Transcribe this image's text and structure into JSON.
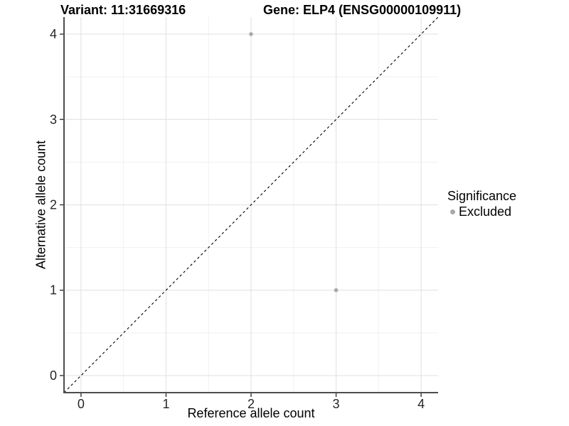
{
  "chart_data": {
    "type": "scatter",
    "titles": {
      "left": "Variant: 11:31669316",
      "right": "Gene: ELP4 (ENSG00000109911)"
    },
    "xlabel": "Reference allele count",
    "ylabel": "Alternative allele count",
    "xlim": [
      -0.2,
      4.2
    ],
    "ylim": [
      -0.2,
      4.2
    ],
    "xticks": [
      0,
      1,
      2,
      3,
      4
    ],
    "yticks": [
      0,
      1,
      2,
      3,
      4
    ],
    "minor_ticks": [
      0.5,
      1.5,
      2.5,
      3.5
    ],
    "grid": "major+minor",
    "identity_line": {
      "slope": 1,
      "intercept": 0,
      "style": "dashed",
      "color": "#000000"
    },
    "series": [
      {
        "name": "Excluded",
        "color": "#a9a9a9",
        "points": [
          {
            "x": 2,
            "y": 4
          },
          {
            "x": 3,
            "y": 1
          }
        ]
      }
    ],
    "legend": {
      "title": "Significance",
      "position": "right",
      "entries": [
        {
          "label": "Excluded",
          "color": "#a9a9a9",
          "marker": "circle"
        }
      ]
    },
    "colors": {
      "background": "#ffffff",
      "grid_major": "#e4e4e4",
      "grid_minor": "#f1f1f1",
      "axis_line": "#4d4d4d",
      "tick_mark": "#333333",
      "tick_text": "#262626",
      "text": "#000000"
    }
  }
}
